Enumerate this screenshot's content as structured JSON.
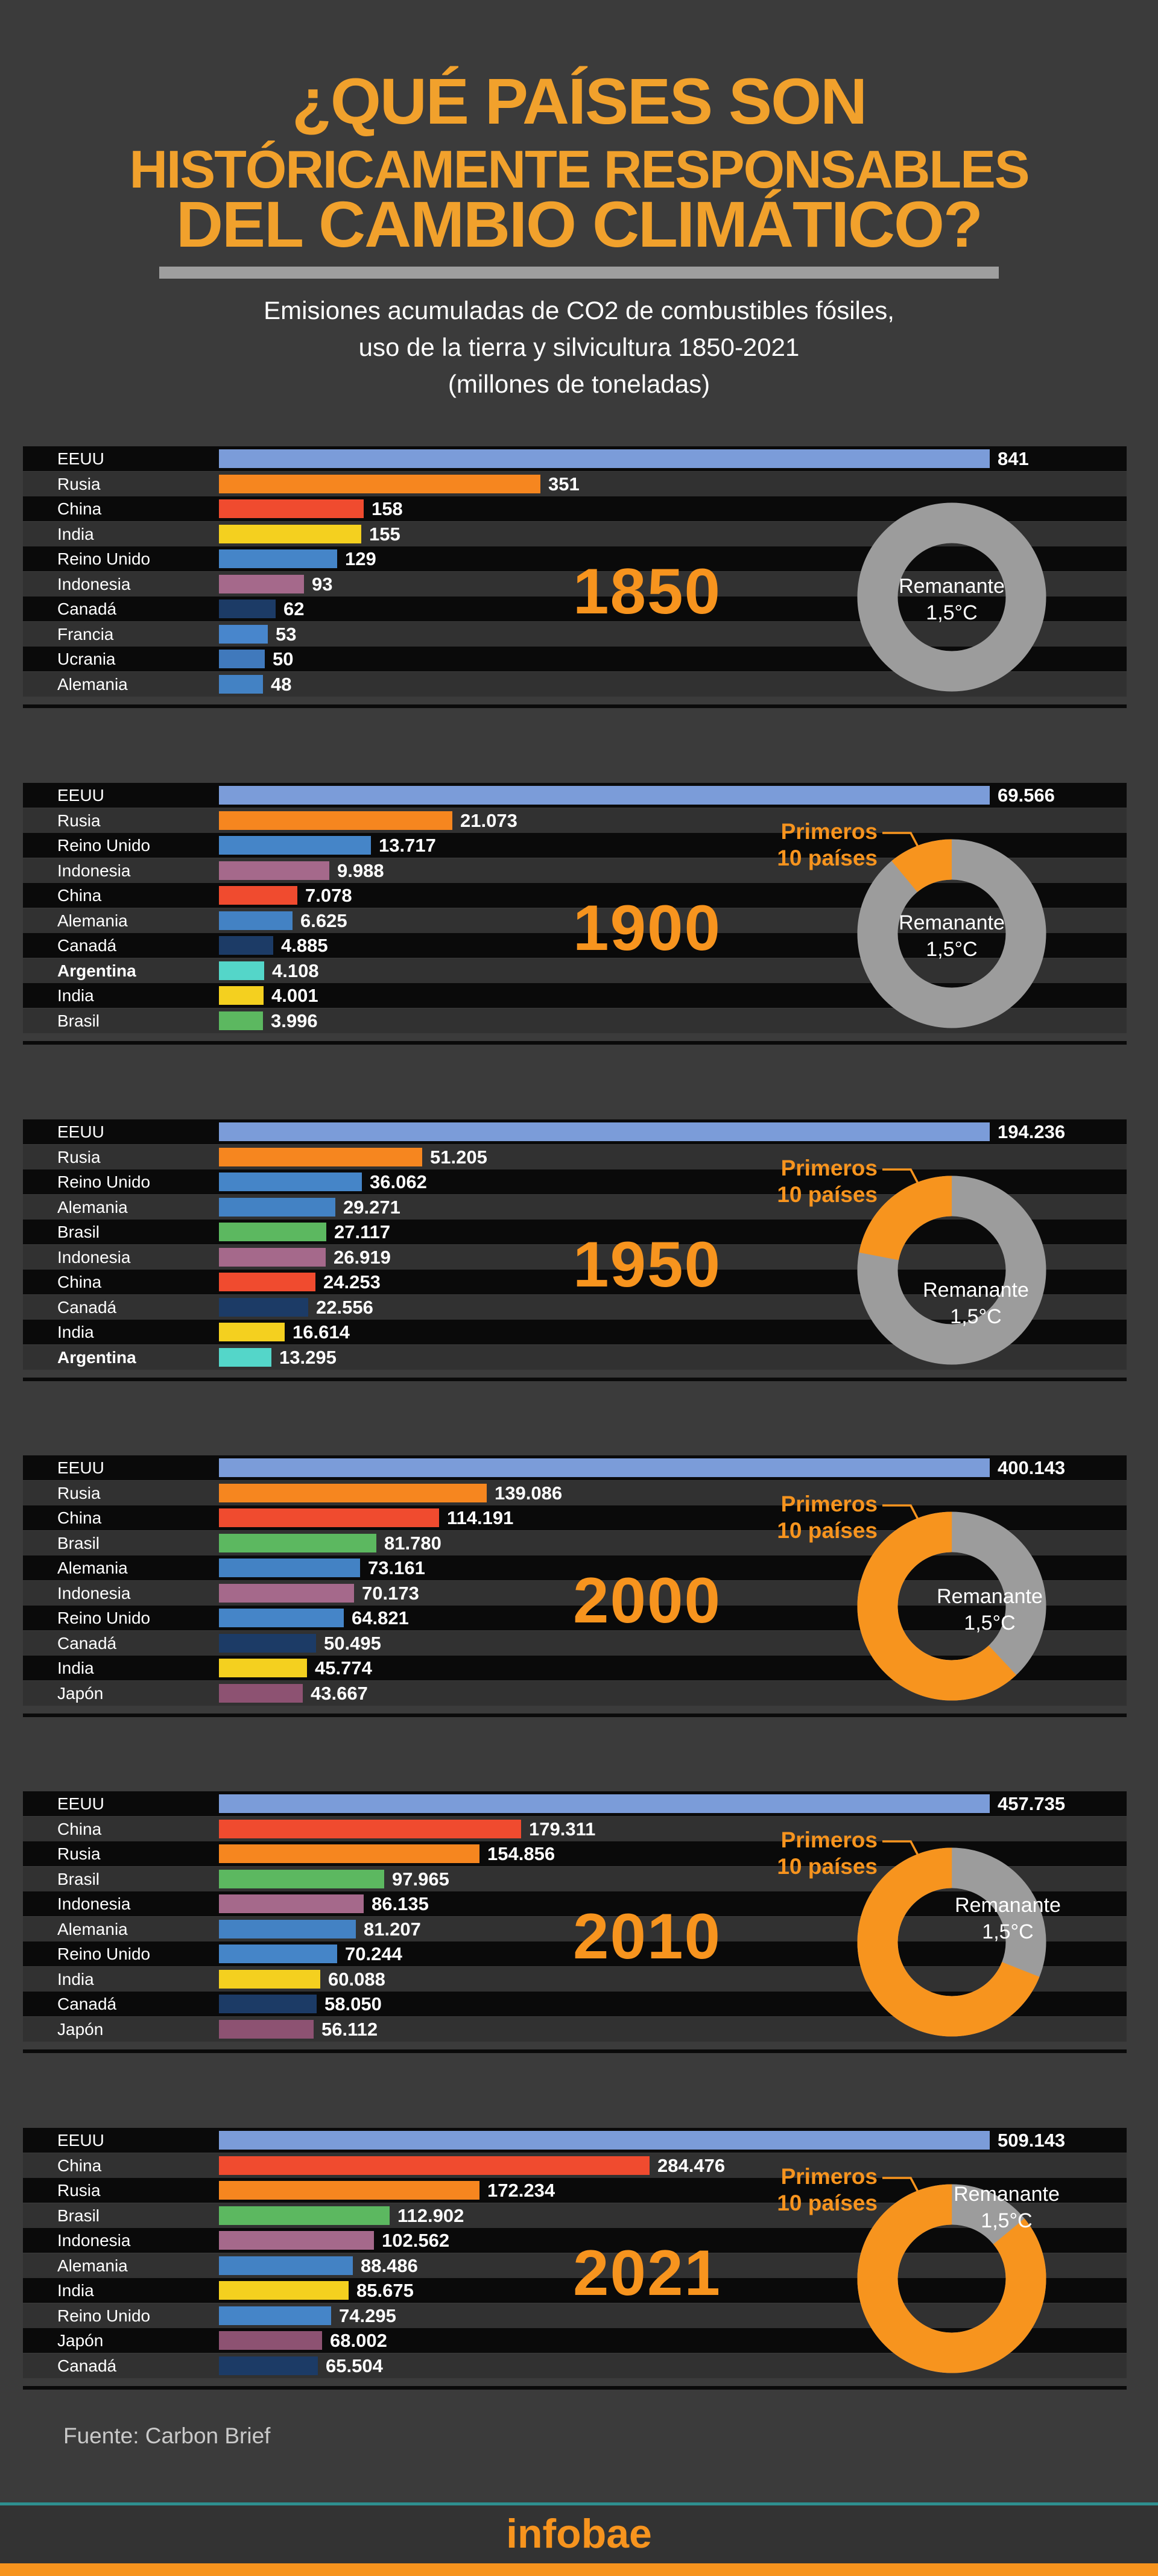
{
  "title": {
    "line1": "¿QUÉ PAÍSES SON",
    "line2": "HISTÓRICAMENTE RESPONSABLES",
    "line3": "DEL CAMBIO CLIMÁTICO?"
  },
  "subtitle": {
    "line1": "Emisiones acumuladas de CO2 de combustibles fósiles,",
    "line2": "uso de la tierra y silvicultura 1850-2021",
    "line3": "(millones de toneladas)"
  },
  "source": "Fuente: Carbon Brief",
  "brand": "infobae",
  "donut_legend": {
    "top10_line1": "Primeros",
    "top10_line2": "10 países",
    "remnant_line1": "Remanante",
    "remnant_line2": "1,5°C"
  },
  "colors": {
    "accent": "#F7941E",
    "title_orange": "#F1A12C",
    "ring_gray": "#9C9C9C",
    "strip_black": "#0A0A0A",
    "strip_dark": "#313131",
    "background": "#3B3B3B",
    "teal_rule": "#2E8F8F",
    "EEUU": "#7B9CD9",
    "Rusia": "#F6861F",
    "China": "#F04B2F",
    "India": "#F4D01F",
    "Reino Unido": "#4585C8",
    "Indonesia": "#A5698B",
    "Canadá": "#1C3B66",
    "Francia": "#4886CC",
    "Ucrania": "#4079BC",
    "Alemania": "#4382C4",
    "Brasil": "#5CB860",
    "Argentina": "#54D6C9",
    "Japón": "#8D5272"
  },
  "chart_data": [
    {
      "type": "bar+donut",
      "year": "1850",
      "top10_share": 0.0,
      "rows": [
        {
          "country": "EEUU",
          "value": 841,
          "label": "841"
        },
        {
          "country": "Rusia",
          "value": 351,
          "label": "351"
        },
        {
          "country": "China",
          "value": 158,
          "label": "158"
        },
        {
          "country": "India",
          "value": 155,
          "label": "155"
        },
        {
          "country": "Reino Unido",
          "value": 129,
          "label": "129"
        },
        {
          "country": "Indonesia",
          "value": 93,
          "label": "93"
        },
        {
          "country": "Canadá",
          "value": 62,
          "label": "62"
        },
        {
          "country": "Francia",
          "value": 53,
          "label": "53"
        },
        {
          "country": "Ucrania",
          "value": 50,
          "label": "50"
        },
        {
          "country": "Alemania",
          "value": 48,
          "label": "48"
        }
      ]
    },
    {
      "type": "bar+donut",
      "year": "1900",
      "top10_share": 0.11,
      "rows": [
        {
          "country": "EEUU",
          "value": 69566,
          "label": "69.566"
        },
        {
          "country": "Rusia",
          "value": 21073,
          "label": "21.073"
        },
        {
          "country": "Reino Unido",
          "value": 13717,
          "label": "13.717"
        },
        {
          "country": "Indonesia",
          "value": 9988,
          "label": "9.988"
        },
        {
          "country": "China",
          "value": 7078,
          "label": "7.078"
        },
        {
          "country": "Alemania",
          "value": 6625,
          "label": "6.625"
        },
        {
          "country": "Canadá",
          "value": 4885,
          "label": "4.885"
        },
        {
          "country": "Argentina",
          "value": 4108,
          "label": "4.108",
          "bold": true
        },
        {
          "country": "India",
          "value": 4001,
          "label": "4.001"
        },
        {
          "country": "Brasil",
          "value": 3996,
          "label": "3.996"
        }
      ]
    },
    {
      "type": "bar+donut",
      "year": "1950",
      "top10_share": 0.22,
      "rows": [
        {
          "country": "EEUU",
          "value": 194236,
          "label": "194.236"
        },
        {
          "country": "Rusia",
          "value": 51205,
          "label": "51.205"
        },
        {
          "country": "Reino Unido",
          "value": 36062,
          "label": "36.062"
        },
        {
          "country": "Alemania",
          "value": 29271,
          "label": "29.271"
        },
        {
          "country": "Brasil",
          "value": 27117,
          "label": "27.117"
        },
        {
          "country": "Indonesia",
          "value": 26919,
          "label": "26.919"
        },
        {
          "country": "China",
          "value": 24253,
          "label": "24.253"
        },
        {
          "country": "Canadá",
          "value": 22556,
          "label": "22.556"
        },
        {
          "country": "India",
          "value": 16614,
          "label": "16.614"
        },
        {
          "country": "Argentina",
          "value": 13295,
          "label": "13.295",
          "bold": true
        }
      ]
    },
    {
      "type": "bar+donut",
      "year": "2000",
      "top10_share": 0.62,
      "rows": [
        {
          "country": "EEUU",
          "value": 400143,
          "label": "400.143"
        },
        {
          "country": "Rusia",
          "value": 139086,
          "label": "139.086"
        },
        {
          "country": "China",
          "value": 114191,
          "label": "114.191"
        },
        {
          "country": "Brasil",
          "value": 81780,
          "label": "81.780"
        },
        {
          "country": "Alemania",
          "value": 73161,
          "label": "73.161"
        },
        {
          "country": "Indonesia",
          "value": 70173,
          "label": "70.173"
        },
        {
          "country": "Reino Unido",
          "value": 64821,
          "label": "64.821"
        },
        {
          "country": "Canadá",
          "value": 50495,
          "label": "50.495"
        },
        {
          "country": "India",
          "value": 45774,
          "label": "45.774"
        },
        {
          "country": "Japón",
          "value": 43667,
          "label": "43.667"
        }
      ]
    },
    {
      "type": "bar+donut",
      "year": "2010",
      "top10_share": 0.69,
      "rows": [
        {
          "country": "EEUU",
          "value": 457735,
          "label": "457.735"
        },
        {
          "country": "China",
          "value": 179311,
          "label": "179.311"
        },
        {
          "country": "Rusia",
          "value": 154856,
          "label": "154.856"
        },
        {
          "country": "Brasil",
          "value": 97965,
          "label": "97.965"
        },
        {
          "country": "Indonesia",
          "value": 86135,
          "label": "86.135"
        },
        {
          "country": "Alemania",
          "value": 81207,
          "label": "81.207"
        },
        {
          "country": "Reino Unido",
          "value": 70244,
          "label": "70.244"
        },
        {
          "country": "India",
          "value": 60088,
          "label": "60.088"
        },
        {
          "country": "Canadá",
          "value": 58050,
          "label": "58.050"
        },
        {
          "country": "Japón",
          "value": 56112,
          "label": "56.112"
        }
      ]
    },
    {
      "type": "bar+donut",
      "year": "2021",
      "top10_share": 0.86,
      "rows": [
        {
          "country": "EEUU",
          "value": 509143,
          "label": "509.143"
        },
        {
          "country": "China",
          "value": 284476,
          "label": "284.476"
        },
        {
          "country": "Rusia",
          "value": 172234,
          "label": "172.234"
        },
        {
          "country": "Brasil",
          "value": 112902,
          "label": "112.902"
        },
        {
          "country": "Indonesia",
          "value": 102562,
          "label": "102.562"
        },
        {
          "country": "Alemania",
          "value": 88486,
          "label": "88.486"
        },
        {
          "country": "India",
          "value": 85675,
          "label": "85.675"
        },
        {
          "country": "Reino Unido",
          "value": 74295,
          "label": "74.295"
        },
        {
          "country": "Japón",
          "value": 68002,
          "label": "68.002"
        },
        {
          "country": "Canadá",
          "value": 65504,
          "label": "65.504"
        }
      ]
    }
  ]
}
